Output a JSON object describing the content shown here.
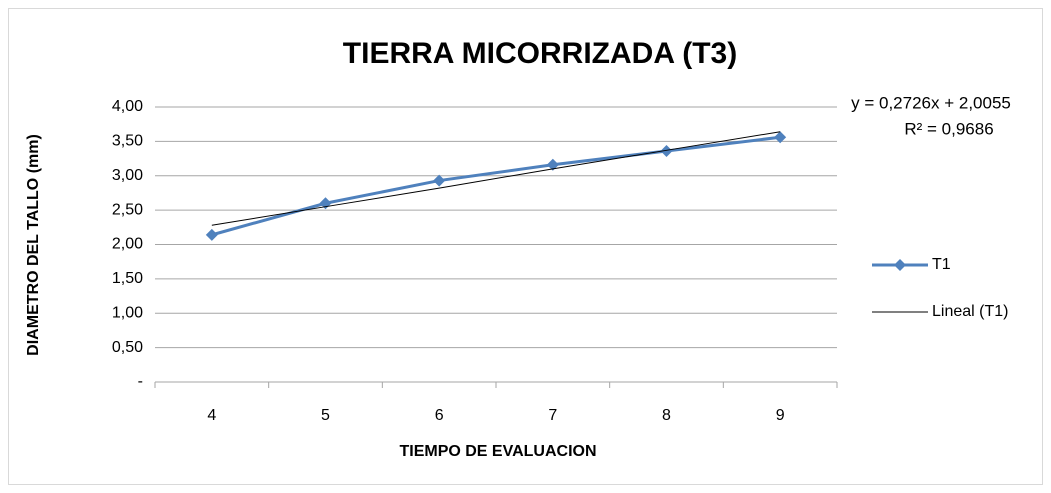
{
  "chart_data": {
    "type": "line",
    "title": "TIERRA MICORRIZADA (T3)",
    "x_label": "TIEMPO DE EVALUACION",
    "y_label": "DIAMETRO DEL TALLO (mm)",
    "categories": [
      "4",
      "5",
      "6",
      "7",
      "8",
      "9"
    ],
    "series": [
      {
        "name": "T1",
        "color": "#4f81bd",
        "values": [
          2.14,
          2.6,
          2.93,
          3.16,
          3.36,
          3.56
        ]
      },
      {
        "name": "Lineal (T1)",
        "color": "#000000",
        "values": [
          2.28,
          2.55,
          2.82,
          3.1,
          3.37,
          3.64
        ]
      }
    ],
    "annotations": [
      "y = 0,2726x + 2,0055",
      "R² = 0,9686"
    ],
    "ylim": [
      0,
      4
    ],
    "yticks": [
      {
        "value": 0,
        "label": "-"
      },
      {
        "value": 0.5,
        "label": "0,50"
      },
      {
        "value": 1,
        "label": "1,00"
      },
      {
        "value": 1.5,
        "label": "1,50"
      },
      {
        "value": 2,
        "label": "2,00"
      },
      {
        "value": 2.5,
        "label": "2,50"
      },
      {
        "value": 3,
        "label": "3,00"
      },
      {
        "value": 3.5,
        "label": "3,50"
      },
      {
        "value": 4,
        "label": "4,00"
      }
    ],
    "grid": true,
    "legend": "right"
  }
}
